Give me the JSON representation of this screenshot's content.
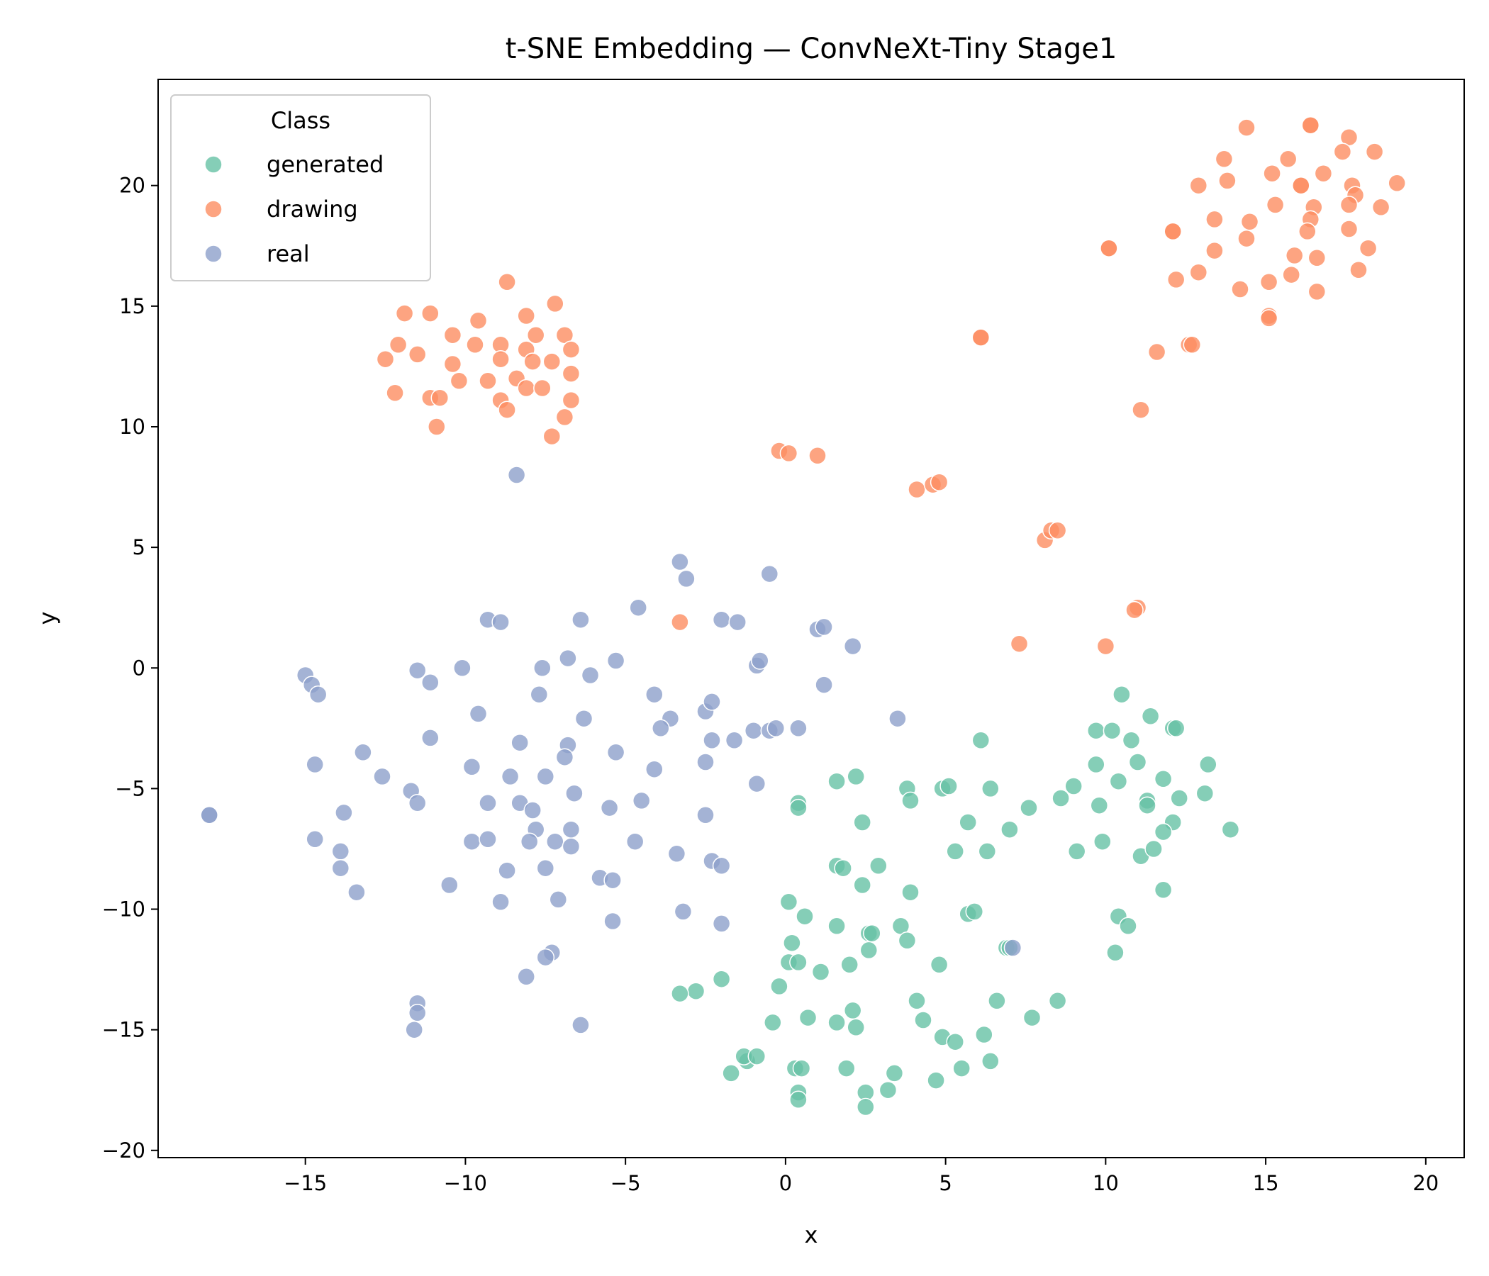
{
  "chart_data": {
    "type": "scatter",
    "title": "t-SNE Embedding — ConvNeXt-Tiny Stage1",
    "xlabel": "x",
    "ylabel": "y",
    "xlim": [
      -19.6,
      21.2
    ],
    "ylim": [
      -20.3,
      24.4
    ],
    "xticks": [
      -15,
      -10,
      -5,
      0,
      5,
      10,
      15,
      20
    ],
    "yticks": [
      -20,
      -15,
      -10,
      -5,
      0,
      5,
      10,
      15,
      20
    ],
    "xtick_labels": [
      "−15",
      "−10",
      "−5",
      "0",
      "5",
      "10",
      "15",
      "20"
    ],
    "ytick_labels": [
      "−20",
      "−15",
      "−10",
      "−5",
      "0",
      "5",
      "10",
      "15",
      "20"
    ],
    "grid": false,
    "legend": {
      "title": "Class",
      "position": "top-left"
    },
    "series": [
      {
        "name": "generated",
        "color": "#66c2a5",
        "points": [
          [
            10.5,
            -1.1
          ],
          [
            11.4,
            -2.0
          ],
          [
            12.1,
            -2.5
          ],
          [
            12.2,
            -2.5
          ],
          [
            9.7,
            -2.6
          ],
          [
            10.2,
            -2.6
          ],
          [
            10.8,
            -3.0
          ],
          [
            6.1,
            -3.0
          ],
          [
            9.7,
            -4.0
          ],
          [
            11.0,
            -3.9
          ],
          [
            13.2,
            -4.0
          ],
          [
            10.4,
            -4.7
          ],
          [
            11.8,
            -4.6
          ],
          [
            1.6,
            -4.7
          ],
          [
            2.2,
            -4.5
          ],
          [
            3.8,
            -5.0
          ],
          [
            4.9,
            -5.0
          ],
          [
            5.1,
            -4.9
          ],
          [
            6.4,
            -5.0
          ],
          [
            9.0,
            -4.9
          ],
          [
            0.4,
            -5.6
          ],
          [
            0.4,
            -5.8
          ],
          [
            3.9,
            -5.5
          ],
          [
            8.6,
            -5.4
          ],
          [
            7.6,
            -5.8
          ],
          [
            11.3,
            -5.5
          ],
          [
            11.3,
            -5.7
          ],
          [
            12.3,
            -5.4
          ],
          [
            13.1,
            -5.2
          ],
          [
            9.8,
            -5.7
          ],
          [
            2.4,
            -6.4
          ],
          [
            5.7,
            -6.4
          ],
          [
            12.1,
            -6.4
          ],
          [
            11.8,
            -6.8
          ],
          [
            13.9,
            -6.7
          ],
          [
            7.0,
            -6.7
          ],
          [
            9.9,
            -7.2
          ],
          [
            5.3,
            -7.6
          ],
          [
            6.3,
            -7.6
          ],
          [
            9.1,
            -7.6
          ],
          [
            11.1,
            -7.8
          ],
          [
            11.5,
            -7.5
          ],
          [
            1.6,
            -8.2
          ],
          [
            1.8,
            -8.3
          ],
          [
            2.9,
            -8.2
          ],
          [
            2.4,
            -9.0
          ],
          [
            3.9,
            -9.3
          ],
          [
            11.8,
            -9.2
          ],
          [
            0.1,
            -9.7
          ],
          [
            0.6,
            -10.3
          ],
          [
            5.7,
            -10.2
          ],
          [
            5.9,
            -10.1
          ],
          [
            10.4,
            -10.3
          ],
          [
            10.7,
            -10.7
          ],
          [
            1.6,
            -10.7
          ],
          [
            2.6,
            -11.0
          ],
          [
            2.7,
            -11.0
          ],
          [
            3.6,
            -10.7
          ],
          [
            0.2,
            -11.4
          ],
          [
            3.8,
            -11.3
          ],
          [
            2.6,
            -11.7
          ],
          [
            6.9,
            -11.6
          ],
          [
            7.0,
            -11.6
          ],
          [
            10.3,
            -11.8
          ],
          [
            0.1,
            -12.2
          ],
          [
            0.4,
            -12.2
          ],
          [
            1.1,
            -12.6
          ],
          [
            2.0,
            -12.3
          ],
          [
            4.8,
            -12.3
          ],
          [
            -2.0,
            -12.9
          ],
          [
            -0.2,
            -13.2
          ],
          [
            -2.8,
            -13.4
          ],
          [
            -3.3,
            -13.5
          ],
          [
            4.1,
            -13.8
          ],
          [
            6.6,
            -13.8
          ],
          [
            8.5,
            -13.8
          ],
          [
            2.1,
            -14.2
          ],
          [
            0.7,
            -14.5
          ],
          [
            -0.4,
            -14.7
          ],
          [
            1.6,
            -14.7
          ],
          [
            2.2,
            -14.9
          ],
          [
            4.3,
            -14.6
          ],
          [
            7.7,
            -14.5
          ],
          [
            4.9,
            -15.3
          ],
          [
            5.3,
            -15.5
          ],
          [
            6.2,
            -15.2
          ],
          [
            -1.2,
            -16.3
          ],
          [
            -1.3,
            -16.1
          ],
          [
            -0.9,
            -16.1
          ],
          [
            6.4,
            -16.3
          ],
          [
            0.3,
            -16.6
          ],
          [
            0.5,
            -16.6
          ],
          [
            1.9,
            -16.6
          ],
          [
            5.5,
            -16.6
          ],
          [
            -1.7,
            -16.8
          ],
          [
            3.4,
            -16.8
          ],
          [
            4.7,
            -17.1
          ],
          [
            2.5,
            -17.6
          ],
          [
            3.2,
            -17.5
          ],
          [
            0.4,
            -17.6
          ],
          [
            0.4,
            -17.9
          ],
          [
            2.5,
            -18.2
          ]
        ]
      },
      {
        "name": "drawing",
        "color": "#fc8d62",
        "points": [
          [
            16.4,
            22.5
          ],
          [
            16.4,
            22.5
          ],
          [
            14.4,
            22.4
          ],
          [
            17.6,
            22.0
          ],
          [
            13.7,
            21.1
          ],
          [
            15.7,
            21.1
          ],
          [
            17.4,
            21.4
          ],
          [
            18.4,
            21.4
          ],
          [
            15.2,
            20.5
          ],
          [
            16.8,
            20.5
          ],
          [
            12.9,
            20.0
          ],
          [
            13.8,
            20.2
          ],
          [
            16.1,
            20.0
          ],
          [
            16.1,
            20.0
          ],
          [
            17.7,
            20.0
          ],
          [
            19.1,
            20.1
          ],
          [
            17.8,
            19.6
          ],
          [
            17.6,
            19.2
          ],
          [
            15.3,
            19.2
          ],
          [
            16.5,
            19.1
          ],
          [
            18.6,
            19.1
          ],
          [
            13.4,
            18.6
          ],
          [
            14.5,
            18.5
          ],
          [
            16.4,
            18.6
          ],
          [
            16.3,
            18.1
          ],
          [
            17.6,
            18.2
          ],
          [
            12.1,
            18.1
          ],
          [
            12.1,
            18.1
          ],
          [
            14.4,
            17.8
          ],
          [
            10.1,
            17.4
          ],
          [
            10.1,
            17.4
          ],
          [
            13.4,
            17.3
          ],
          [
            15.9,
            17.1
          ],
          [
            16.6,
            17.0
          ],
          [
            18.2,
            17.4
          ],
          [
            12.9,
            16.4
          ],
          [
            17.9,
            16.5
          ],
          [
            12.2,
            16.1
          ],
          [
            15.1,
            16.0
          ],
          [
            15.8,
            16.3
          ],
          [
            14.2,
            15.7
          ],
          [
            16.6,
            15.6
          ],
          [
            15.1,
            14.6
          ],
          [
            15.1,
            14.5
          ],
          [
            6.1,
            13.7
          ],
          [
            6.1,
            13.7
          ],
          [
            12.6,
            13.4
          ],
          [
            12.7,
            13.4
          ],
          [
            11.6,
            13.1
          ],
          [
            11.1,
            10.7
          ],
          [
            -8.7,
            16.0
          ],
          [
            -7.2,
            15.1
          ],
          [
            -11.9,
            14.7
          ],
          [
            -11.1,
            14.7
          ],
          [
            -9.6,
            14.4
          ],
          [
            -8.1,
            14.6
          ],
          [
            -10.4,
            13.8
          ],
          [
            -7.8,
            13.8
          ],
          [
            -6.9,
            13.8
          ],
          [
            -12.1,
            13.4
          ],
          [
            -9.7,
            13.4
          ],
          [
            -8.9,
            13.4
          ],
          [
            -8.1,
            13.2
          ],
          [
            -6.7,
            13.2
          ],
          [
            -12.5,
            12.8
          ],
          [
            -11.5,
            13.0
          ],
          [
            -8.9,
            12.8
          ],
          [
            -7.9,
            12.7
          ],
          [
            -7.3,
            12.7
          ],
          [
            -10.4,
            12.6
          ],
          [
            -10.2,
            11.9
          ],
          [
            -9.3,
            11.9
          ],
          [
            -8.4,
            12.0
          ],
          [
            -6.7,
            12.2
          ],
          [
            -12.2,
            11.4
          ],
          [
            -11.1,
            11.2
          ],
          [
            -10.8,
            11.2
          ],
          [
            -8.1,
            11.6
          ],
          [
            -7.6,
            11.6
          ],
          [
            -8.9,
            11.1
          ],
          [
            -6.7,
            11.1
          ],
          [
            -8.7,
            10.7
          ],
          [
            -6.9,
            10.4
          ],
          [
            -10.9,
            10.0
          ],
          [
            -7.3,
            9.6
          ],
          [
            -0.2,
            9.0
          ],
          [
            0.1,
            8.9
          ],
          [
            1.0,
            8.8
          ],
          [
            4.1,
            7.4
          ],
          [
            4.6,
            7.6
          ],
          [
            4.8,
            7.7
          ],
          [
            8.1,
            5.3
          ],
          [
            8.3,
            5.7
          ],
          [
            8.5,
            5.7
          ],
          [
            -3.3,
            1.9
          ],
          [
            11.0,
            2.5
          ],
          [
            10.9,
            2.4
          ],
          [
            7.3,
            1.0
          ],
          [
            10.0,
            0.9
          ]
        ]
      },
      {
        "name": "real",
        "color": "#8da0cb",
        "points": [
          [
            -8.4,
            8.0
          ],
          [
            -3.3,
            4.4
          ],
          [
            -3.1,
            3.7
          ],
          [
            -0.5,
            3.9
          ],
          [
            -9.3,
            2.0
          ],
          [
            -8.9,
            1.9
          ],
          [
            -6.4,
            2.0
          ],
          [
            -4.6,
            2.5
          ],
          [
            -2.0,
            2.0
          ],
          [
            -1.5,
            1.9
          ],
          [
            1.0,
            1.6
          ],
          [
            1.2,
            1.7
          ],
          [
            2.1,
            0.9
          ],
          [
            -6.8,
            0.4
          ],
          [
            -5.3,
            0.3
          ],
          [
            -10.1,
            0.0
          ],
          [
            -7.6,
            0.0
          ],
          [
            -0.9,
            0.1
          ],
          [
            -0.8,
            0.3
          ],
          [
            -15.0,
            -0.3
          ],
          [
            -14.8,
            -0.7
          ],
          [
            -14.6,
            -1.1
          ],
          [
            -11.5,
            -0.1
          ],
          [
            -11.1,
            -0.6
          ],
          [
            -6.1,
            -0.3
          ],
          [
            -7.7,
            -1.1
          ],
          [
            -4.1,
            -1.1
          ],
          [
            1.2,
            -0.7
          ],
          [
            -9.6,
            -1.9
          ],
          [
            -6.3,
            -2.1
          ],
          [
            -3.6,
            -2.1
          ],
          [
            -2.5,
            -1.8
          ],
          [
            -2.3,
            -1.4
          ],
          [
            3.5,
            -2.1
          ],
          [
            -3.9,
            -2.5
          ],
          [
            -1.0,
            -2.6
          ],
          [
            -0.5,
            -2.6
          ],
          [
            -0.3,
            -2.5
          ],
          [
            0.4,
            -2.5
          ],
          [
            -11.1,
            -2.9
          ],
          [
            -8.3,
            -3.1
          ],
          [
            -6.8,
            -3.2
          ],
          [
            -6.9,
            -3.7
          ],
          [
            -5.3,
            -3.5
          ],
          [
            -2.3,
            -3.0
          ],
          [
            -1.6,
            -3.0
          ],
          [
            -13.2,
            -3.5
          ],
          [
            -14.7,
            -4.0
          ],
          [
            -9.8,
            -4.1
          ],
          [
            -4.1,
            -4.2
          ],
          [
            -2.5,
            -3.9
          ],
          [
            -12.6,
            -4.5
          ],
          [
            -8.6,
            -4.5
          ],
          [
            -7.5,
            -4.5
          ],
          [
            -11.7,
            -5.1
          ],
          [
            -6.6,
            -5.2
          ],
          [
            -11.5,
            -5.6
          ],
          [
            -9.3,
            -5.6
          ],
          [
            -8.3,
            -5.6
          ],
          [
            -7.9,
            -5.9
          ],
          [
            -5.5,
            -5.8
          ],
          [
            -4.5,
            -5.5
          ],
          [
            -0.9,
            -4.8
          ],
          [
            -18.0,
            -6.1
          ],
          [
            -18.0,
            -6.1
          ],
          [
            -13.8,
            -6.0
          ],
          [
            -2.5,
            -6.1
          ],
          [
            -7.8,
            -6.7
          ],
          [
            -6.7,
            -6.7
          ],
          [
            -14.7,
            -7.1
          ],
          [
            -9.8,
            -7.2
          ],
          [
            -9.3,
            -7.1
          ],
          [
            -8.0,
            -7.2
          ],
          [
            -7.2,
            -7.2
          ],
          [
            -6.7,
            -7.4
          ],
          [
            -4.7,
            -7.2
          ],
          [
            -13.9,
            -7.6
          ],
          [
            -13.9,
            -8.3
          ],
          [
            -8.7,
            -8.4
          ],
          [
            -7.5,
            -8.3
          ],
          [
            -3.4,
            -7.7
          ],
          [
            -2.3,
            -8.0
          ],
          [
            -2.0,
            -8.2
          ],
          [
            -5.8,
            -8.7
          ],
          [
            -5.4,
            -8.8
          ],
          [
            -10.5,
            -9.0
          ],
          [
            -13.4,
            -9.3
          ],
          [
            -8.9,
            -9.7
          ],
          [
            -7.1,
            -9.6
          ],
          [
            -3.2,
            -10.1
          ],
          [
            -5.4,
            -10.5
          ],
          [
            -2.0,
            -10.6
          ],
          [
            -7.3,
            -11.8
          ],
          [
            -7.5,
            -12.0
          ],
          [
            -8.1,
            -12.8
          ],
          [
            -11.5,
            -13.9
          ],
          [
            -11.5,
            -14.3
          ],
          [
            -11.6,
            -15.0
          ],
          [
            -6.4,
            -14.8
          ],
          [
            7.1,
            -11.6
          ]
        ]
      }
    ]
  }
}
